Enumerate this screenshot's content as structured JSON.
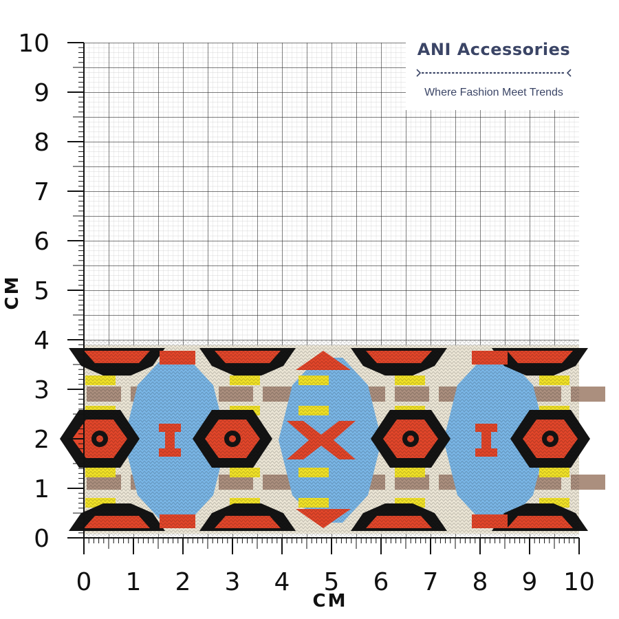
{
  "brand": {
    "name": "ANI Accessories",
    "tagline": "Where Fashion Meet Trends",
    "color": "#3b4566"
  },
  "ruler": {
    "x_axis_title": "CM",
    "y_axis_title": "CM",
    "x_range": [
      0,
      10
    ],
    "y_range": [
      0,
      10
    ],
    "x_ticks": [
      "0",
      "1",
      "2",
      "3",
      "4",
      "5",
      "6",
      "7",
      "8",
      "9",
      "10"
    ],
    "y_ticks": [
      "0",
      "1",
      "2",
      "3",
      "4",
      "5",
      "6",
      "7",
      "8",
      "9",
      "10"
    ],
    "grid": true,
    "grid_minor_per_cm": 5
  },
  "ribbon": {
    "width_cm": 3.9,
    "pattern": "woven ethnic aztec jacquard",
    "colors": {
      "base": "#ece6d6",
      "black": "#141414",
      "red": "#e2462a",
      "blue": "#7ab6e6",
      "yellow": "#f1e227",
      "taupe": "#ab8f7e"
    }
  }
}
